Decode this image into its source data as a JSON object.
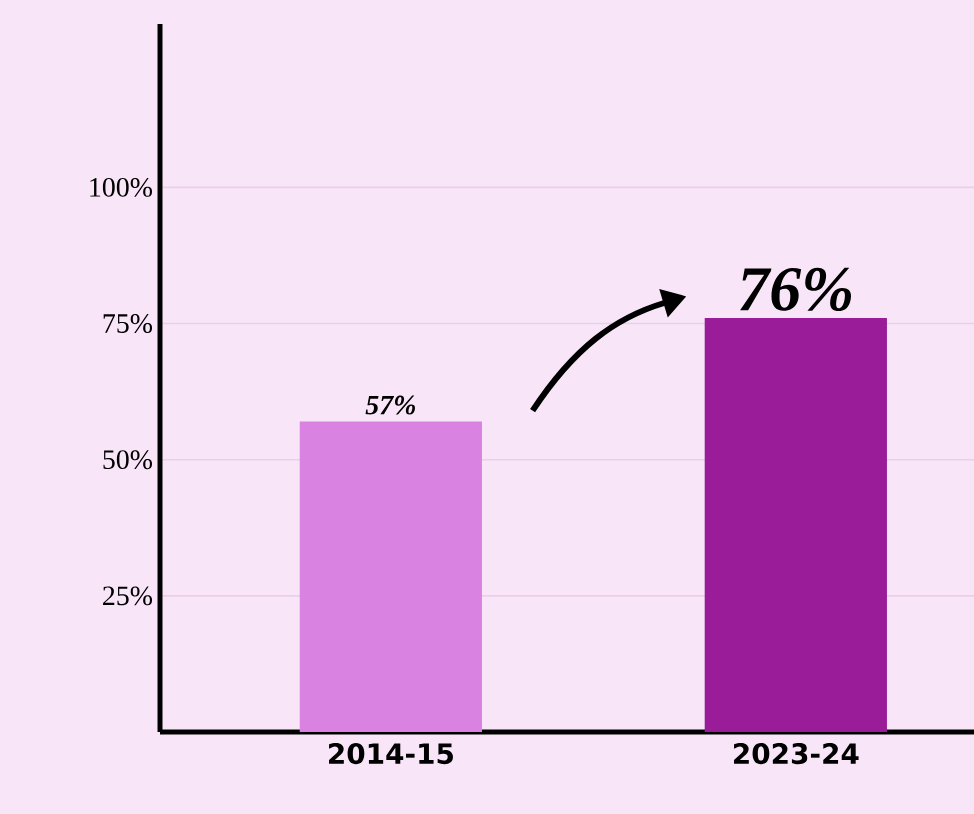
{
  "chart_data": {
    "type": "bar",
    "categories": [
      "2014-15",
      "2023-24"
    ],
    "values": [
      57,
      76
    ],
    "colors": [
      "#d982e2",
      "#9a1c98"
    ],
    "value_labels": [
      "57%",
      "76%"
    ],
    "ylim": [
      0,
      130
    ],
    "yticks": [
      {
        "value": 25,
        "label": "25%"
      },
      {
        "value": 50,
        "label": "50%"
      },
      {
        "value": 75,
        "label": "75%"
      },
      {
        "value": 100,
        "label": "100%"
      }
    ],
    "grid": "y"
  }
}
